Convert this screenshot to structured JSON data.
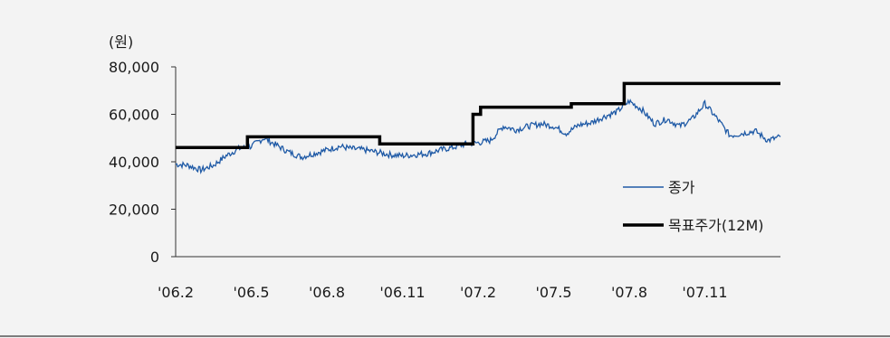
{
  "chart_data": {
    "type": "line",
    "ylabel": "(원)",
    "ylim": [
      0,
      80000
    ],
    "yticks": [
      0,
      20000,
      40000,
      60000,
      80000
    ],
    "ytick_labels": [
      "0",
      "20,000",
      "40,000",
      "60,000",
      "80,000"
    ],
    "x_start": "2006-02",
    "x_end": "2008-01",
    "xtick_labels": [
      "'06.2",
      "'06.5",
      "'06.8",
      "'06.11",
      "'07.2",
      "'07.5",
      "'07.8",
      "'07.11"
    ],
    "grid": false,
    "legend_position": "right",
    "series": [
      {
        "name": "종가",
        "color": "#1f5aa6",
        "style": "thin",
        "x": [
          0,
          0.5,
          1,
          1.5,
          2,
          2.5,
          3,
          3.5,
          4,
          4.5,
          5,
          5.5,
          6,
          6.5,
          7,
          7.5,
          8,
          8.5,
          9,
          9.5,
          10,
          10.5,
          11,
          11.5,
          12,
          12.5,
          13,
          13.5,
          14,
          14.5,
          15,
          15.5,
          16,
          16.5,
          17,
          17.5,
          18,
          18.5,
          19,
          19.5,
          20,
          20.5,
          21,
          21.5,
          22,
          22.5,
          23,
          23.5,
          24
        ],
        "values": [
          39000,
          38500,
          36500,
          38500,
          42500,
          45500,
          46500,
          50000,
          47000,
          44000,
          42000,
          43500,
          45000,
          46500,
          45500,
          45000,
          44000,
          43000,
          42500,
          43000,
          43500,
          45000,
          46000,
          47500,
          48000,
          49000,
          55000,
          53500,
          55000,
          56000,
          55000,
          52000,
          55500,
          56500,
          59000,
          61000,
          65500,
          62000,
          56000,
          58000,
          55000,
          58000,
          64500,
          58000,
          51000,
          52000,
          53000,
          49000,
          50500
        ]
      },
      {
        "name": "목표주가(12M)",
        "color": "#000000",
        "style": "thick",
        "steps": [
          {
            "from": 0,
            "to": 2.85,
            "value": 46000
          },
          {
            "from": 2.85,
            "to": 8.1,
            "value": 50500
          },
          {
            "from": 8.1,
            "to": 11.8,
            "value": 47500
          },
          {
            "from": 11.8,
            "to": 12.1,
            "value": 60000
          },
          {
            "from": 12.1,
            "to": 15.7,
            "value": 63000
          },
          {
            "from": 15.7,
            "to": 17.8,
            "value": 64500
          },
          {
            "from": 17.8,
            "to": 24,
            "value": 73000
          }
        ]
      }
    ]
  }
}
